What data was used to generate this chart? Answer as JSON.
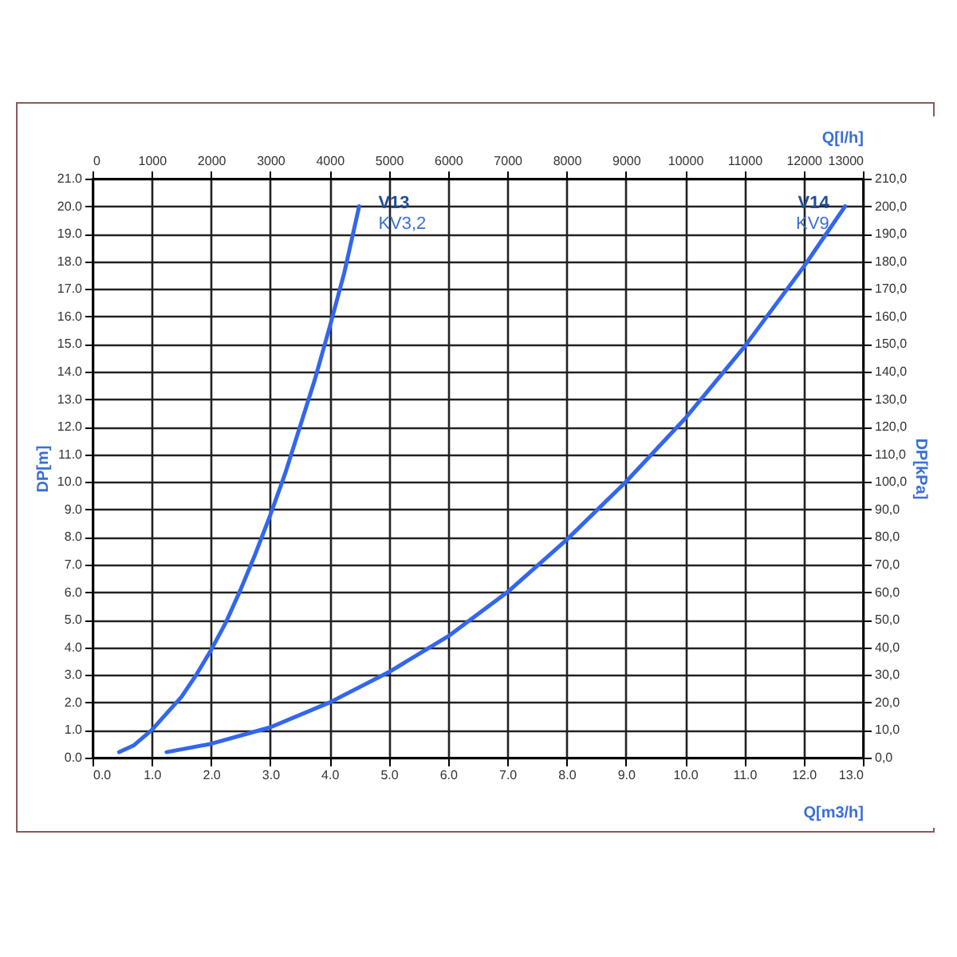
{
  "chart_data": {
    "type": "line",
    "xlabel": "Q[m3/h]",
    "x2label": "Q[l/h]",
    "ylabel": "DP[m]",
    "y2label": "DP[kPa]",
    "xlim": [
      0,
      13
    ],
    "xticks": [
      {
        "value": 0,
        "label": "0.0"
      },
      {
        "value": 1,
        "label": "1.0"
      },
      {
        "value": 2,
        "label": "2.0"
      },
      {
        "value": 3,
        "label": "3.0"
      },
      {
        "value": 4,
        "label": "4.0"
      },
      {
        "value": 5,
        "label": "5.0"
      },
      {
        "value": 6,
        "label": "6.0"
      },
      {
        "value": 7,
        "label": "7.0"
      },
      {
        "value": 8,
        "label": "8.0"
      },
      {
        "value": 9,
        "label": "9.0"
      },
      {
        "value": 10,
        "label": "10.0"
      },
      {
        "value": 11,
        "label": "11.0"
      },
      {
        "value": 12,
        "label": "12.0"
      },
      {
        "value": 13,
        "label": "13.0"
      }
    ],
    "x2lim": [
      0,
      13000
    ],
    "x2ticks": [
      0,
      1000,
      2000,
      3000,
      4000,
      5000,
      6000,
      7000,
      8000,
      9000,
      10000,
      11000,
      12000,
      13000
    ],
    "ylim": [
      0,
      21
    ],
    "yticks": [
      {
        "value": 0,
        "label": "0.0"
      },
      {
        "value": 1,
        "label": "1.0"
      },
      {
        "value": 2,
        "label": "2.0"
      },
      {
        "value": 3,
        "label": "3.0"
      },
      {
        "value": 4,
        "label": "4.0"
      },
      {
        "value": 5,
        "label": "5.0"
      },
      {
        "value": 6,
        "label": "6.0"
      },
      {
        "value": 7,
        "label": "7.0"
      },
      {
        "value": 8,
        "label": "8.0"
      },
      {
        "value": 9,
        "label": "9.0"
      },
      {
        "value": 10,
        "label": "10.0"
      },
      {
        "value": 11,
        "label": "11.0"
      },
      {
        "value": 12,
        "label": "12.0"
      },
      {
        "value": 13,
        "label": "13.0"
      },
      {
        "value": 14,
        "label": "14.0"
      },
      {
        "value": 15,
        "label": "15.0"
      },
      {
        "value": 16,
        "label": "16.0"
      },
      {
        "value": 17,
        "label": "17.0"
      },
      {
        "value": 18,
        "label": "18.0"
      },
      {
        "value": 19,
        "label": "19.0"
      },
      {
        "value": 20,
        "label": "20.0"
      },
      {
        "value": 21,
        "label": "21.0"
      }
    ],
    "y2lim": [
      0,
      210
    ],
    "y2ticks": [
      {
        "value": 0,
        "label": "0,0"
      },
      {
        "value": 10,
        "label": "10,0"
      },
      {
        "value": 20,
        "label": "20,0"
      },
      {
        "value": 30,
        "label": "30,0"
      },
      {
        "value": 40,
        "label": "40,0"
      },
      {
        "value": 50,
        "label": "50,0"
      },
      {
        "value": 60,
        "label": "60,0"
      },
      {
        "value": 70,
        "label": "70,0"
      },
      {
        "value": 80,
        "label": "80,0"
      },
      {
        "value": 90,
        "label": "90,0"
      },
      {
        "value": 100,
        "label": "100,0"
      },
      {
        "value": 110,
        "label": "110,0"
      },
      {
        "value": 120,
        "label": "120,0"
      },
      {
        "value": 130,
        "label": "130,0"
      },
      {
        "value": 140,
        "label": "140,0"
      },
      {
        "value": 150,
        "label": "150,0"
      },
      {
        "value": 160,
        "label": "160,0"
      },
      {
        "value": 170,
        "label": "170,0"
      },
      {
        "value": 180,
        "label": "180,0"
      },
      {
        "value": 190,
        "label": "190,0"
      },
      {
        "value": 200,
        "label": "200,0"
      },
      {
        "value": 210,
        "label": "210,0"
      }
    ],
    "grid": true,
    "legend": false,
    "series": [
      {
        "name": "V13",
        "color": "#3366ee",
        "x": [
          0.45,
          0.7,
          1.0,
          1.5,
          1.75,
          2.0,
          2.25,
          2.5,
          2.75,
          3.0,
          3.25,
          3.5,
          3.75,
          4.0,
          4.25,
          4.5
        ],
        "values": [
          0.2,
          0.45,
          1.0,
          2.2,
          3.0,
          3.9,
          4.9,
          6.1,
          7.4,
          8.8,
          10.3,
          12.0,
          13.7,
          15.6,
          17.6,
          20.0
        ]
      },
      {
        "name": "V14",
        "color": "#3366ee",
        "x": [
          1.25,
          2.0,
          3.0,
          4.0,
          5.0,
          6.0,
          7.0,
          8.0,
          9.0,
          10.0,
          11.0,
          12.0,
          12.7
        ],
        "values": [
          0.2,
          0.5,
          1.1,
          2.0,
          3.1,
          4.4,
          6.0,
          7.9,
          10.0,
          12.3,
          14.9,
          17.8,
          20.0
        ]
      }
    ],
    "annotations": [
      {
        "text": "KV3,2",
        "x": 4.5,
        "y": 20
      },
      {
        "text": "KV9",
        "x": 12.7,
        "y": 20
      }
    ]
  }
}
